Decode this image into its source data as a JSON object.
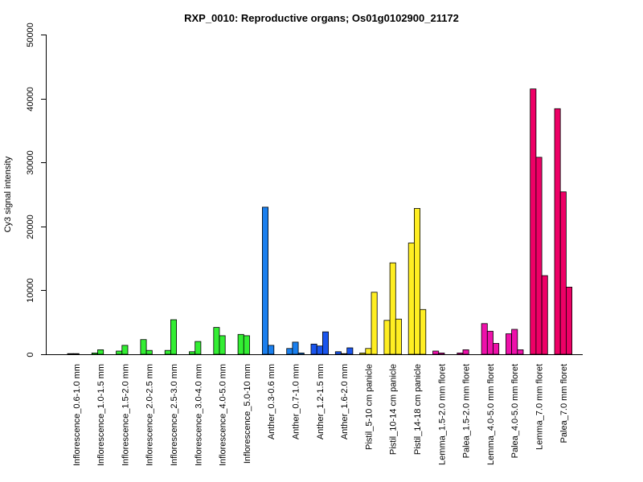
{
  "chart_data": {
    "type": "bar",
    "title": "RXP_0010: Reproductive organs; Os01g0102900_21172",
    "xlabel": "",
    "ylabel": "Cy3 signal intensity",
    "ylim": [
      0,
      50000
    ],
    "yticks": [
      "0",
      "10000",
      "20000",
      "30000",
      "40000",
      "50000"
    ],
    "grid": false,
    "legend": "none",
    "categories": [
      "Inflorescence_0.6-1.0 mm",
      "Inflorescence_1.0-1.5 mm",
      "Inflorescence_1.5-2.0 mm",
      "Inflorescence_2.0-2.5 mm",
      "Inflorescence_2.5-3.0 mm",
      "Inflorescence_3.0-4.0 mm",
      "Inflorescence_4.0-5.0 mm",
      "Inflorescence_5.0-10 mm",
      "Anther_0.3-0.6 mm",
      "Anther_0.7-1.0 mm",
      "Anther_1.2-1.5 mm",
      "Anther_1.6-2.0 mm",
      "Pistil_5-10 cm panicle",
      "Pistil_10-14 cm panicle",
      "Pistil_14-18 cm panicle",
      "Lemma_1.5-2.0 mm floret",
      "Palea_1.5-2.0 mm floret",
      "Lemma_4.0-5.0 mm floret",
      "Palea_4.0-5.0 mm floret",
      "Lemma_7.0 mm floret",
      "Palea_7.0 mm floret"
    ],
    "groups": [
      {
        "color": "#33ee33",
        "values": [
          100,
          100,
          0
        ]
      },
      {
        "color": "#33ee33",
        "values": [
          200,
          700,
          0
        ]
      },
      {
        "color": "#33ee33",
        "values": [
          500,
          1400,
          0
        ]
      },
      {
        "color": "#33ee33",
        "values": [
          2300,
          600,
          0
        ]
      },
      {
        "color": "#33ee33",
        "values": [
          600,
          5400,
          0
        ]
      },
      {
        "color": "#33ee33",
        "values": [
          400,
          2000,
          0
        ]
      },
      {
        "color": "#33ee33",
        "values": [
          4200,
          2900,
          0
        ]
      },
      {
        "color": "#33ee33",
        "values": [
          3100,
          2900,
          0
        ]
      },
      {
        "color": "#1a7fee",
        "values": [
          23000,
          1400,
          0
        ]
      },
      {
        "color": "#1a7fee",
        "values": [
          900,
          1900,
          200
        ]
      },
      {
        "color": "#1a55ee",
        "values": [
          1600,
          1300,
          3500
        ]
      },
      {
        "color": "#1a55ee",
        "values": [
          400,
          100,
          1000
        ]
      },
      {
        "color": "#ffee22",
        "values": [
          200,
          900,
          9700
        ]
      },
      {
        "color": "#ffee22",
        "values": [
          5300,
          14300,
          5500
        ]
      },
      {
        "color": "#ffee22",
        "values": [
          17400,
          22800,
          7000
        ]
      },
      {
        "color": "#ee11aa",
        "values": [
          500,
          200,
          0
        ]
      },
      {
        "color": "#ee11aa",
        "values": [
          200,
          700,
          0
        ]
      },
      {
        "color": "#ee11aa",
        "values": [
          4800,
          3600,
          1700
        ]
      },
      {
        "color": "#ee11aa",
        "values": [
          3200,
          3900,
          700
        ]
      },
      {
        "color": "#ee0066",
        "values": [
          41500,
          30800,
          12300
        ]
      },
      {
        "color": "#ee0066",
        "values": [
          38400,
          25400,
          10500
        ]
      }
    ]
  }
}
